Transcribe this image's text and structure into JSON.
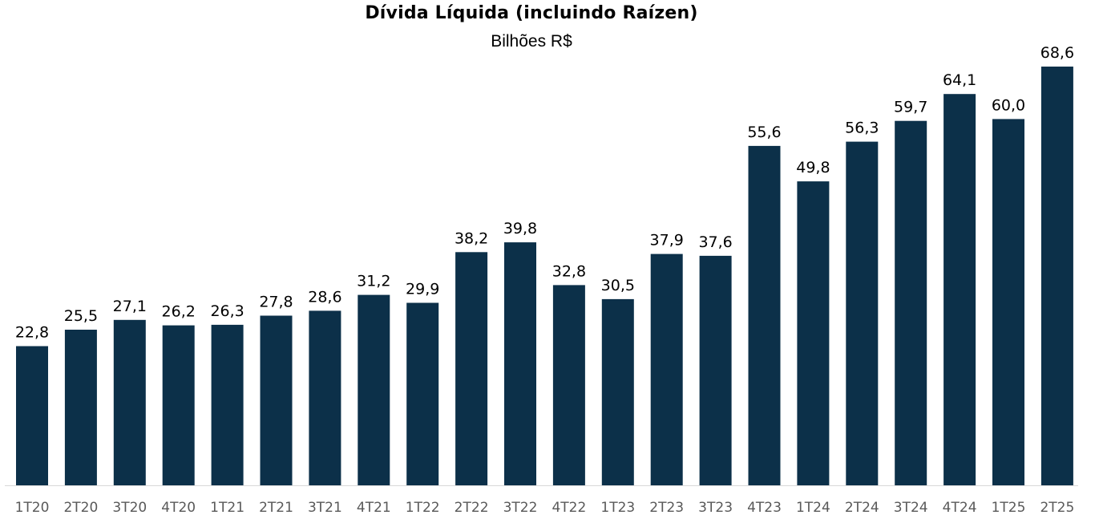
{
  "chart_data": {
    "type": "bar",
    "title": "Dívida Líquida (incluindo Raízen)",
    "subtitle": "Bilhões R$",
    "xlabel": "",
    "ylabel": "",
    "ylim": [
      0,
      68.6
    ],
    "grid": false,
    "legend": "none",
    "bar_color": "#0c3049",
    "categories": [
      "1T20",
      "2T20",
      "3T20",
      "4T20",
      "1T21",
      "2T21",
      "3T21",
      "4T21",
      "1T22",
      "2T22",
      "3T22",
      "4T22",
      "1T23",
      "2T23",
      "3T23",
      "4T23",
      "1T24",
      "2T24",
      "3T24",
      "4T24",
      "1T25",
      "2T25"
    ],
    "values": [
      22.8,
      25.5,
      27.1,
      26.2,
      26.3,
      27.8,
      28.6,
      31.2,
      29.9,
      38.2,
      39.8,
      32.8,
      30.5,
      37.9,
      37.6,
      55.6,
      49.8,
      56.3,
      59.7,
      64.1,
      60.0,
      68.6
    ],
    "labels": [
      "22,8",
      "25,5",
      "27,1",
      "26,2",
      "26,3",
      "27,8",
      "28,6",
      "31,2",
      "29,9",
      "38,2",
      "39,8",
      "32,8",
      "30,5",
      "37,9",
      "37,6",
      "55,6",
      "49,8",
      "56,3",
      "59,7",
      "64,1",
      "60,0",
      "68,6"
    ]
  }
}
